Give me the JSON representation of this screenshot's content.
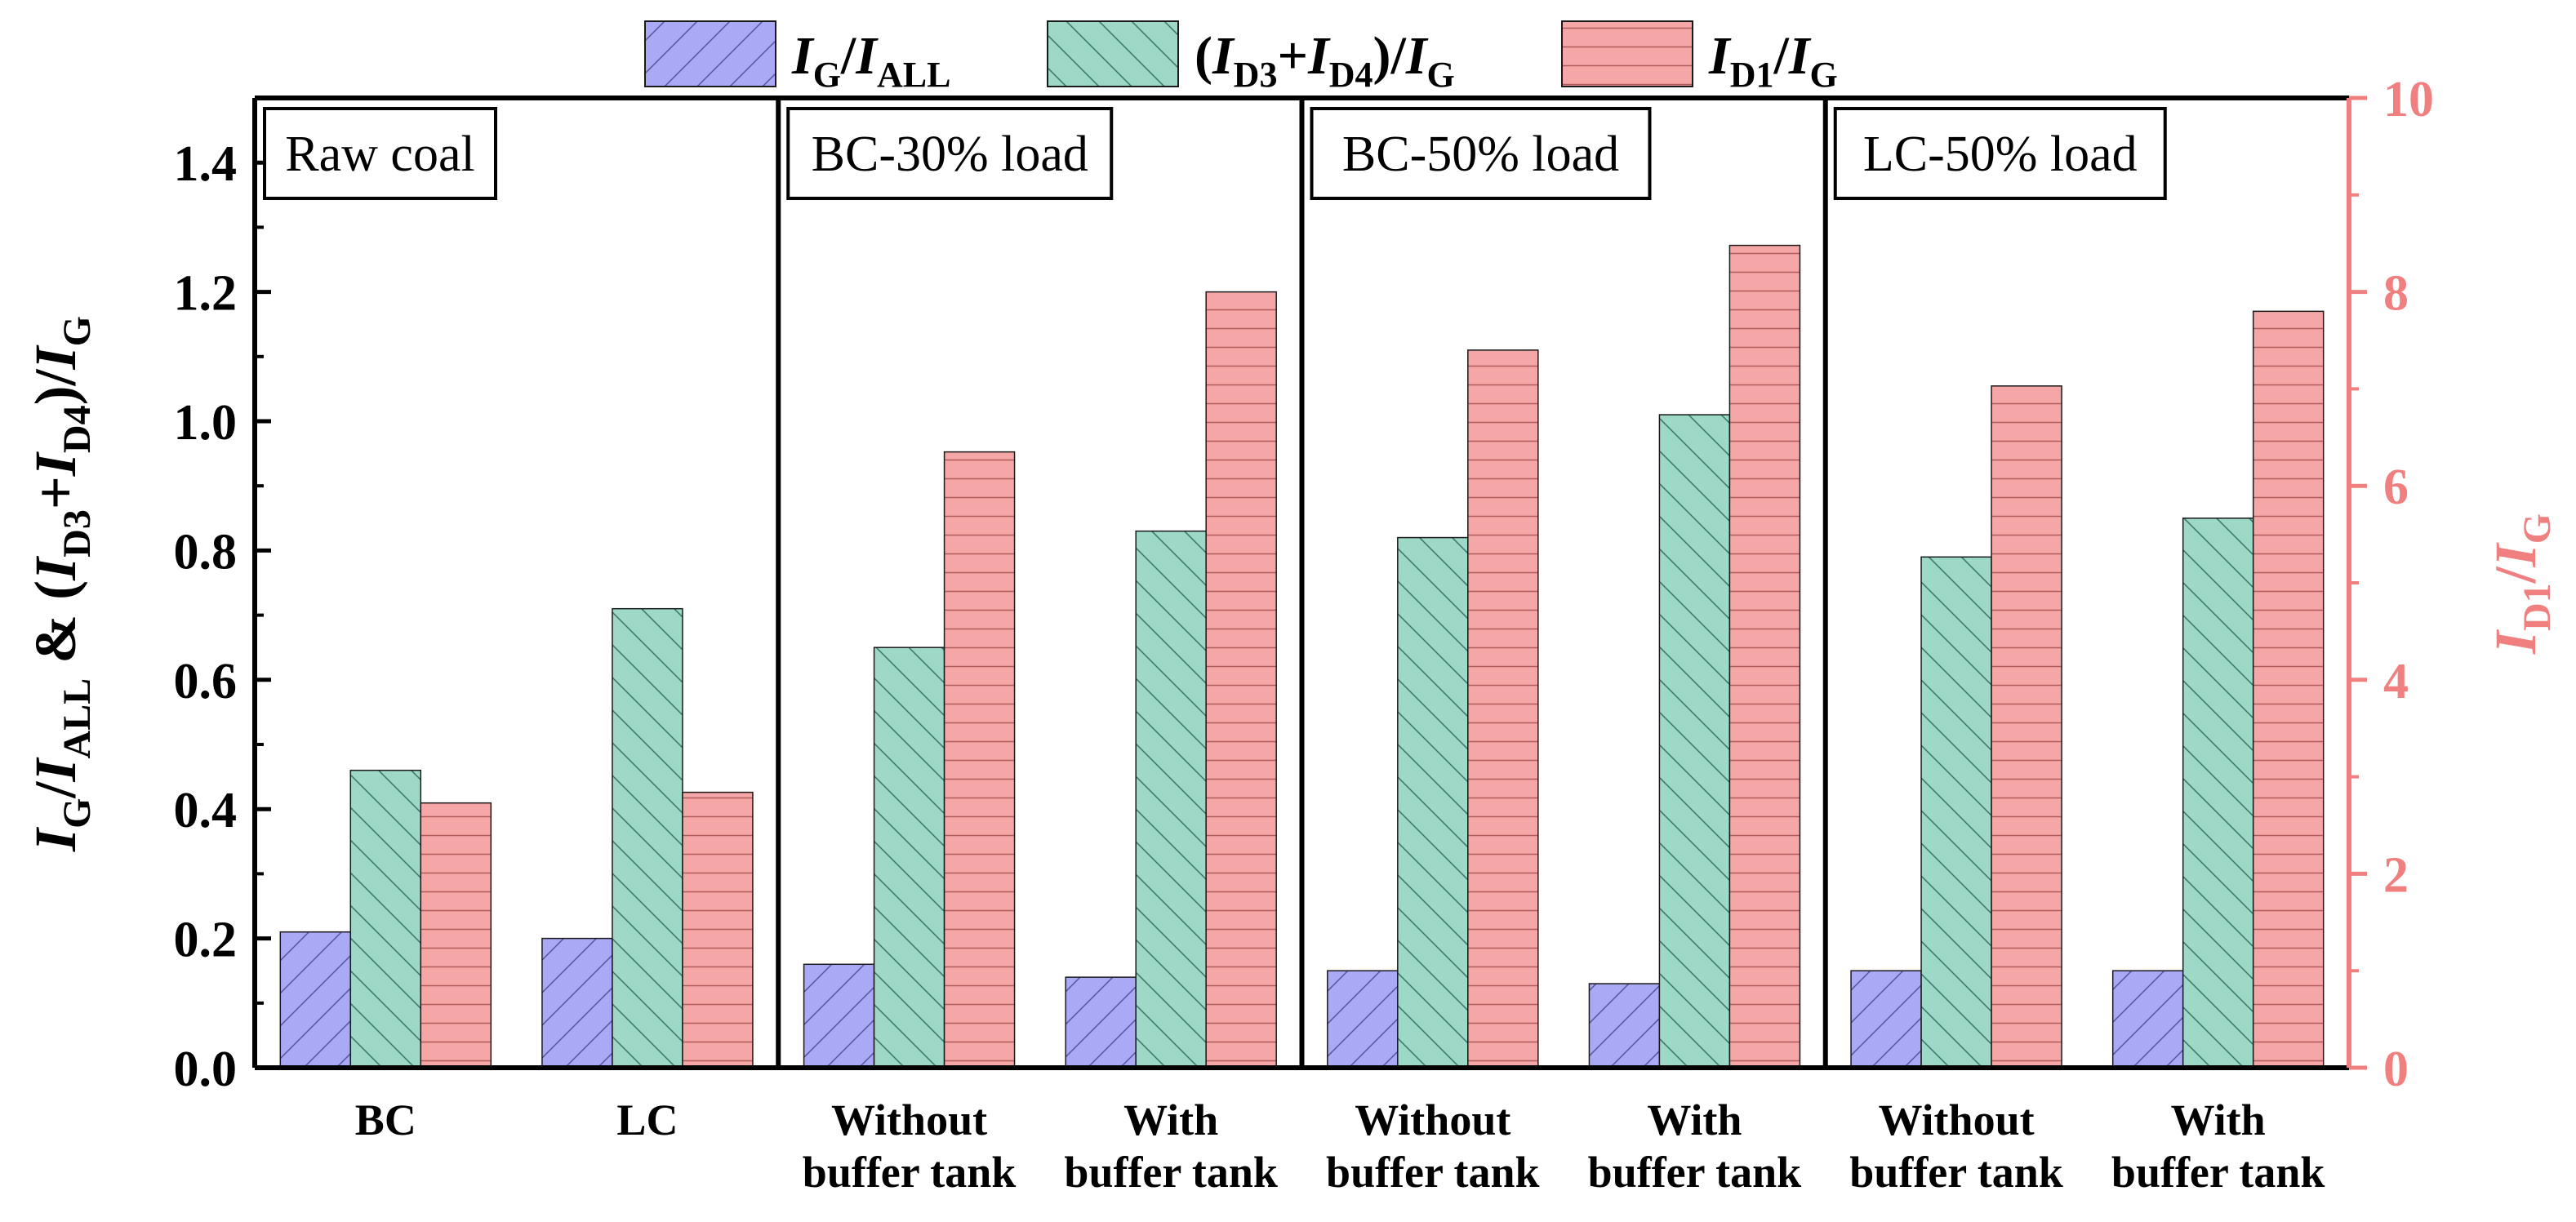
{
  "chart_data": {
    "type": "bar",
    "title": "",
    "categories": [
      [
        "BC"
      ],
      [
        "LC"
      ],
      [
        "Without",
        "buffer tank"
      ],
      [
        "With",
        "buffer tank"
      ],
      [
        "Without",
        "buffer tank"
      ],
      [
        "With",
        "buffer tank"
      ],
      [
        "Without",
        "buffer tank"
      ],
      [
        "With",
        "buffer tank"
      ]
    ],
    "groups": [
      "Raw coal",
      "BC-30% load",
      "BC-50% load",
      "LC-50% load"
    ],
    "series": [
      {
        "name": "IG/IALL",
        "axis": "left",
        "color": "#a9a9f5",
        "hatch": "diag-up",
        "values": [
          0.21,
          0.2,
          0.16,
          0.14,
          0.15,
          0.13,
          0.15,
          0.15
        ]
      },
      {
        "name": "(ID3+ID4)/IG",
        "axis": "left",
        "color": "#9ed9c8",
        "hatch": "diag-down",
        "values": [
          0.46,
          0.71,
          0.65,
          0.83,
          0.82,
          1.01,
          0.79,
          0.85
        ]
      },
      {
        "name": "ID1/IG",
        "axis": "right",
        "color": "#f5a7a7",
        "hatch": "horizontal",
        "values": [
          2.73,
          2.84,
          6.35,
          8.0,
          7.4,
          8.48,
          7.03,
          7.8
        ]
      }
    ],
    "legend": [
      {
        "main": "I",
        "sub": "G",
        "mid": "/I",
        "sub2": "ALL"
      },
      {
        "text": "(I",
        "sub": "D3",
        "mid": "+I",
        "sub2": "D4",
        "tail": ")/I",
        "sub3": "G"
      },
      {
        "main": "I",
        "sub": "D1",
        "mid": "/I",
        "sub2": "G"
      }
    ],
    "ylabel_left": "IG/IALL & (ID3+ID4)/IG",
    "ylabel_right": "ID1/IG",
    "ylim_left": [
      0,
      1.5
    ],
    "yticks_left": [
      "0.0",
      "0.2",
      "0.4",
      "0.6",
      "0.8",
      "1.0",
      "1.2",
      "1.4"
    ],
    "ylim_right": [
      0,
      10
    ],
    "yticks_right": [
      "0",
      "2",
      "4",
      "6",
      "8",
      "10"
    ],
    "right_axis_color": "#f08080",
    "legend_position": "top-center",
    "grid": false
  }
}
